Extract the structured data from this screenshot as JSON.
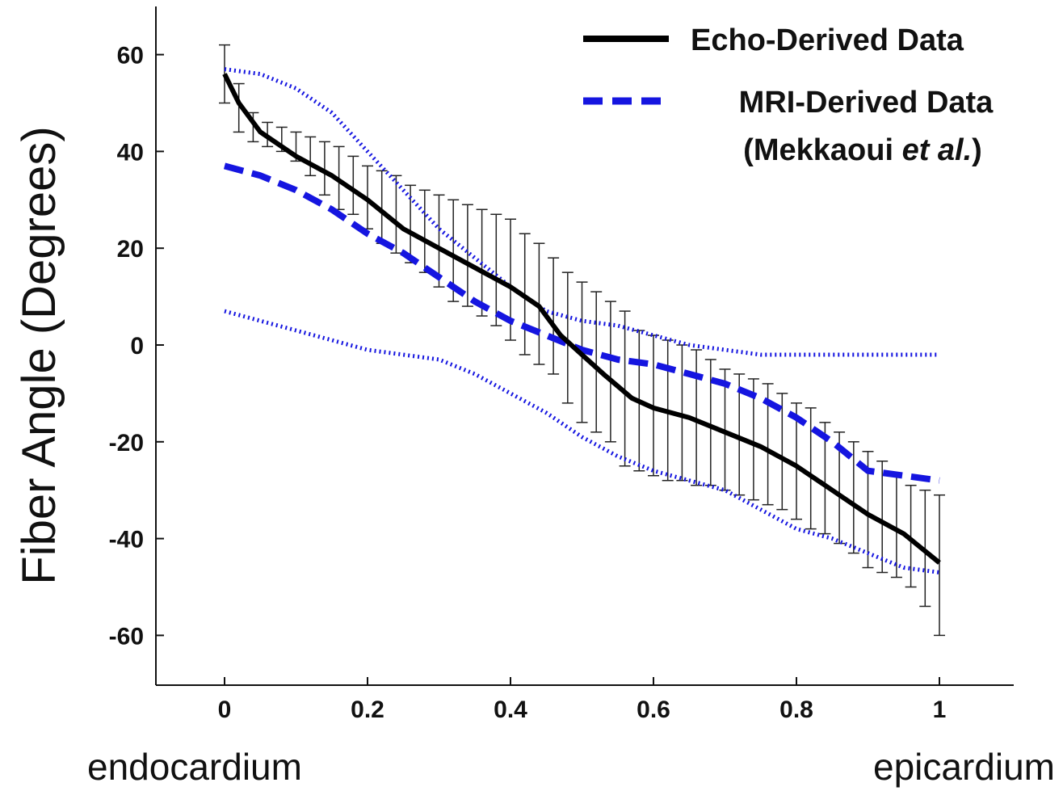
{
  "chart_data": {
    "type": "line",
    "xlim": [
      -0.1,
      1.1
    ],
    "ylim": [
      -70,
      70
    ],
    "xticks": [
      "0",
      "0.2",
      "0.4",
      "0.6",
      "0.8",
      "1"
    ],
    "xtick_values": [
      0,
      0.2,
      0.4,
      0.6,
      0.8,
      1
    ],
    "yticks": [
      "-60",
      "-40",
      "-20",
      "0",
      "20",
      "40",
      "60"
    ],
    "ytick_values": [
      -60,
      -40,
      -20,
      0,
      20,
      40,
      60
    ],
    "ylabel": "Fiber Angle (Degrees)",
    "x_left_label": "endocardium",
    "x_right_label": "epicardium",
    "legend": {
      "placement": "top-right",
      "entries": [
        {
          "label": "Echo-Derived Data"
        },
        {
          "label": "MRI-Derived Data"
        },
        {
          "label_prefix": "(Mekkaoui ",
          "label_italic": "et al.",
          "label_suffix": ")"
        }
      ]
    },
    "series": [
      {
        "name": "Echo-Derived Data",
        "style": "solid",
        "color": "#000000",
        "x": [
          0,
          0.02,
          0.05,
          0.1,
          0.15,
          0.2,
          0.25,
          0.3,
          0.35,
          0.4,
          0.44,
          0.47,
          0.5,
          0.53,
          0.57,
          0.6,
          0.65,
          0.7,
          0.75,
          0.8,
          0.85,
          0.9,
          0.95,
          1.0
        ],
        "y": [
          56,
          50,
          44,
          39,
          35,
          30,
          24,
          20,
          16,
          12,
          8,
          2,
          -2,
          -6,
          -11,
          -13,
          -15,
          -18,
          -21,
          -25,
          -30,
          -35,
          -39,
          -45
        ],
        "error_bars": {
          "x": [
            0,
            0.02,
            0.04,
            0.06,
            0.08,
            0.1,
            0.12,
            0.14,
            0.16,
            0.18,
            0.2,
            0.22,
            0.24,
            0.26,
            0.28,
            0.3,
            0.32,
            0.34,
            0.36,
            0.38,
            0.4,
            0.42,
            0.44,
            0.46,
            0.48,
            0.5,
            0.52,
            0.54,
            0.56,
            0.58,
            0.6,
            0.62,
            0.64,
            0.66,
            0.68,
            0.7,
            0.72,
            0.74,
            0.76,
            0.78,
            0.8,
            0.82,
            0.84,
            0.86,
            0.88,
            0.9,
            0.92,
            0.94,
            0.96,
            0.98,
            1.0
          ],
          "upper": [
            62,
            54,
            48,
            46,
            45,
            44,
            43,
            42,
            41,
            39,
            37,
            36,
            35,
            33,
            32,
            31,
            30,
            29,
            28,
            27,
            26,
            23,
            21,
            18,
            15,
            13,
            11,
            9,
            7,
            3,
            2,
            1,
            0,
            -1,
            -3,
            -5,
            -6,
            -7,
            -8,
            -10,
            -12,
            -13,
            -16,
            -18,
            -20,
            -22,
            -24,
            -27,
            -29,
            -30,
            -31
          ],
          "lower": [
            50,
            44,
            42,
            41,
            40,
            38,
            35,
            31,
            28,
            27,
            24,
            21,
            19,
            17,
            15,
            12,
            9,
            8,
            6,
            4,
            1,
            -2,
            -4,
            -6,
            -12,
            -16,
            -18,
            -20,
            -25,
            -26,
            -27,
            -28,
            -28,
            -29,
            -29,
            -30,
            -31,
            -32,
            -33,
            -34,
            -36,
            -38,
            -39,
            -41,
            -43,
            -46,
            -47,
            -48,
            -50,
            -54,
            -60
          ]
        }
      },
      {
        "name": "MRI-Derived Data",
        "style": "dashed",
        "color": "#1515e0",
        "x": [
          0,
          0.05,
          0.1,
          0.15,
          0.2,
          0.25,
          0.3,
          0.35,
          0.4,
          0.45,
          0.5,
          0.55,
          0.6,
          0.65,
          0.7,
          0.75,
          0.8,
          0.85,
          0.9,
          0.95,
          1.0
        ],
        "y": [
          37,
          35,
          32,
          28,
          23,
          19,
          14,
          9,
          5,
          2,
          -1,
          -3,
          -4,
          -6,
          -8,
          -11,
          -15,
          -20,
          -26,
          -27,
          -28
        ]
      },
      {
        "style": "dotted",
        "color": "#1515e0",
        "role": "upper bound",
        "x": [
          0,
          0.05,
          0.1,
          0.15,
          0.2,
          0.25,
          0.3,
          0.35,
          0.4,
          0.45,
          0.5,
          0.55,
          0.6,
          0.65,
          0.7,
          0.75,
          0.8,
          0.85,
          0.9,
          0.95,
          1.0
        ],
        "y": [
          57,
          56,
          53,
          48,
          40,
          32,
          24,
          18,
          12,
          7,
          5,
          4,
          2,
          0,
          -1,
          -2,
          -2,
          -2,
          -2,
          -2,
          -2
        ]
      },
      {
        "style": "dotted",
        "color": "#1515e0",
        "role": "lower bound",
        "x": [
          0,
          0.05,
          0.1,
          0.15,
          0.2,
          0.25,
          0.3,
          0.35,
          0.4,
          0.45,
          0.5,
          0.55,
          0.6,
          0.65,
          0.7,
          0.75,
          0.8,
          0.85,
          0.9,
          0.95,
          1.0
        ],
        "y": [
          7,
          5,
          3,
          1,
          -1,
          -2,
          -3,
          -6,
          -10,
          -14,
          -19,
          -23,
          -26,
          -28,
          -30,
          -34,
          -38,
          -40,
          -43,
          -46,
          -47
        ]
      }
    ]
  }
}
